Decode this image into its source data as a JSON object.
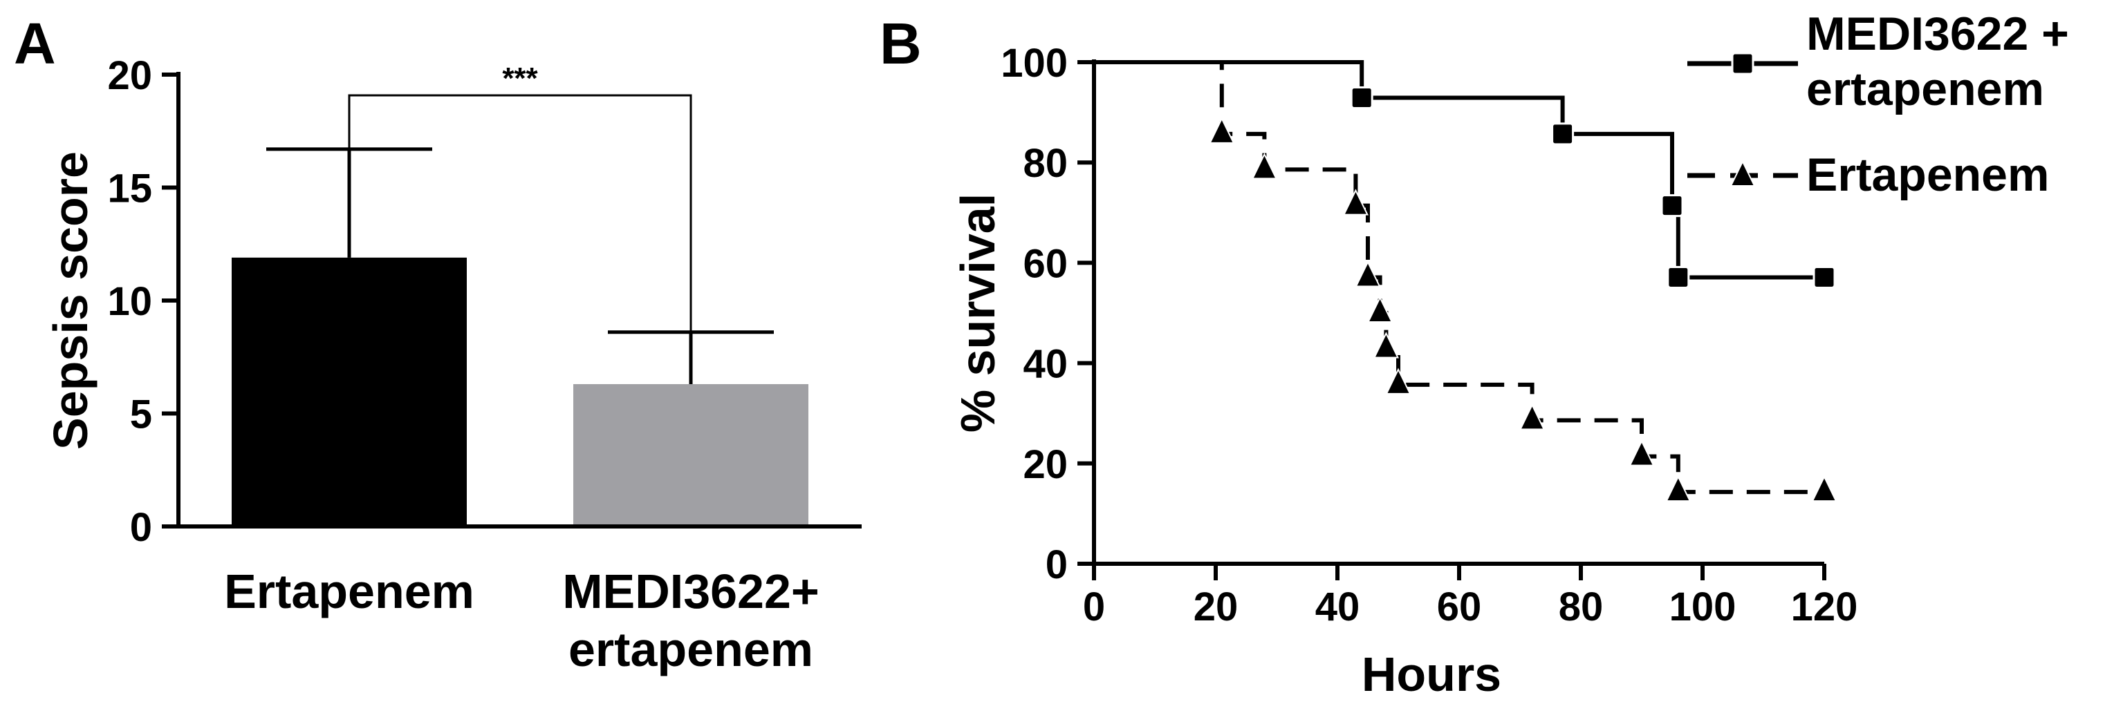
{
  "panels": [
    {
      "letter": "A",
      "chart_data": {
        "type": "bar",
        "categories": [
          [
            "Ertapenem"
          ],
          [
            "MEDI3622+",
            "ertapenem"
          ]
        ],
        "values": [
          11.9,
          6.3
        ],
        "error_upper": [
          16.7,
          8.6
        ],
        "bar_colors": [
          "#000000",
          "#a0a0a4"
        ],
        "ylabel": "Sepsis score",
        "ylim": [
          0,
          20
        ],
        "yticks": [
          0,
          5,
          10,
          15,
          20
        ],
        "significance": {
          "between": [
            0,
            1
          ],
          "label": "***"
        },
        "grid": false
      }
    },
    {
      "letter": "B",
      "chart_data": {
        "type": "line",
        "xlabel": "Hours",
        "ylabel": "% survival",
        "xlim": [
          0,
          120
        ],
        "ylim": [
          0,
          100
        ],
        "xticks": [
          0,
          20,
          40,
          60,
          80,
          100,
          120
        ],
        "yticks": [
          0,
          20,
          40,
          60,
          80,
          100
        ],
        "step": true,
        "grid": false,
        "legend_position": "top-right",
        "series": [
          {
            "name": [
              "MEDI3622 +",
              "ertapenem"
            ],
            "marker": "square",
            "linestyle": "solid",
            "steps": [
              [
                0,
                100
              ],
              [
                44,
                92.9
              ],
              [
                77,
                85.7
              ],
              [
                95,
                71.4
              ],
              [
                96,
                57.1
              ],
              [
                120,
                57.1
              ]
            ],
            "markers": [
              [
                44,
                92.9
              ],
              [
                77,
                85.7
              ],
              [
                95,
                71.4
              ],
              [
                96,
                57.1
              ],
              [
                120,
                57.1
              ]
            ]
          },
          {
            "name": [
              "Ertapenem"
            ],
            "marker": "triangle",
            "linestyle": "dashed",
            "steps": [
              [
                0,
                100
              ],
              [
                21,
                85.7
              ],
              [
                28,
                78.6
              ],
              [
                43,
                71.4
              ],
              [
                45,
                57.1
              ],
              [
                47,
                50
              ],
              [
                48,
                42.9
              ],
              [
                50,
                35.7
              ],
              [
                72,
                28.6
              ],
              [
                90,
                21.4
              ],
              [
                96,
                14.3
              ],
              [
                120,
                14.3
              ]
            ],
            "markers": [
              [
                21,
                85.7
              ],
              [
                28,
                78.6
              ],
              [
                43,
                71.4
              ],
              [
                45,
                57.1
              ],
              [
                47,
                50
              ],
              [
                48,
                42.9
              ],
              [
                50,
                35.7
              ],
              [
                72,
                28.6
              ],
              [
                90,
                21.4
              ],
              [
                96,
                14.3
              ],
              [
                120,
                14.3
              ]
            ]
          }
        ]
      }
    }
  ]
}
